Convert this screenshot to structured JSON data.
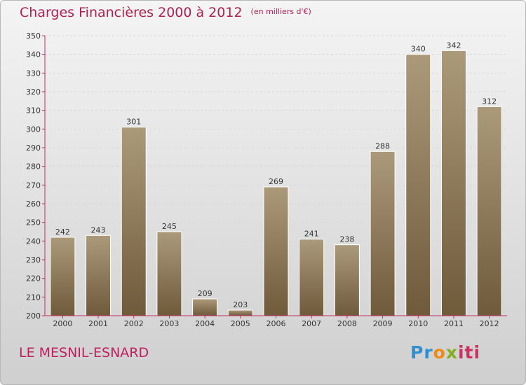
{
  "header": {
    "title": "Charges Financières 2000 à 2012",
    "subtitle": "(en milliers d'€)"
  },
  "footer": {
    "commune": "LE MESNIL-ESNARD",
    "logo": "Proxiti"
  },
  "colors": {
    "title": "#b02050",
    "bar_top": "#ab9a7a",
    "bar_bottom": "#6f5a3a",
    "axis": "#c03060"
  },
  "chart_data": {
    "type": "bar",
    "title": "Charges Financières 2000 à 2012",
    "subtitle": "(en milliers d'€)",
    "xlabel": "",
    "ylabel": "",
    "categories": [
      "2000",
      "2001",
      "2002",
      "2003",
      "2004",
      "2005",
      "2006",
      "2007",
      "2008",
      "2009",
      "2010",
      "2011",
      "2012"
    ],
    "values": [
      242,
      243,
      301,
      245,
      209,
      203,
      269,
      241,
      238,
      288,
      340,
      342,
      312
    ],
    "ylim": [
      200,
      350
    ],
    "yticks": [
      200,
      210,
      220,
      230,
      240,
      250,
      260,
      270,
      280,
      290,
      300,
      310,
      320,
      330,
      340,
      350
    ],
    "grid": true,
    "legend": "none"
  }
}
